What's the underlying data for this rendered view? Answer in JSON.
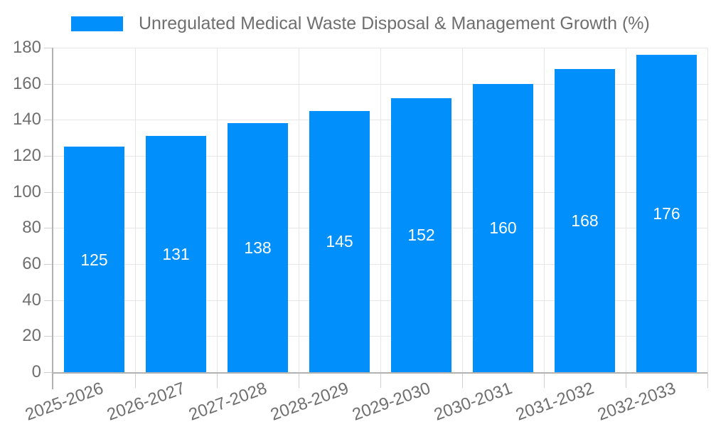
{
  "chart_data": {
    "type": "bar",
    "title": "Unregulated Medical Waste Disposal & Management Growth (%)",
    "categories": [
      "2025-2026",
      "2026-2027",
      "2027-2028",
      "2028-2029",
      "2029-2030",
      "2030-2031",
      "2031-2032",
      "2032-2033"
    ],
    "values": [
      125,
      131,
      138,
      145,
      152,
      160,
      168,
      176
    ],
    "xlabel": "",
    "ylabel": "",
    "ylim": [
      0,
      180
    ],
    "ytick_step": 20,
    "grid": true,
    "legend_position": "top-left",
    "value_labels": "inside-center",
    "colors": {
      "bar": "#008FFB",
      "grid": "#e7e7e7",
      "tick": "#d0d0d0",
      "axis": "#b2b2b2",
      "text": "#6f6f6f",
      "value_label": "#ffffff"
    }
  }
}
